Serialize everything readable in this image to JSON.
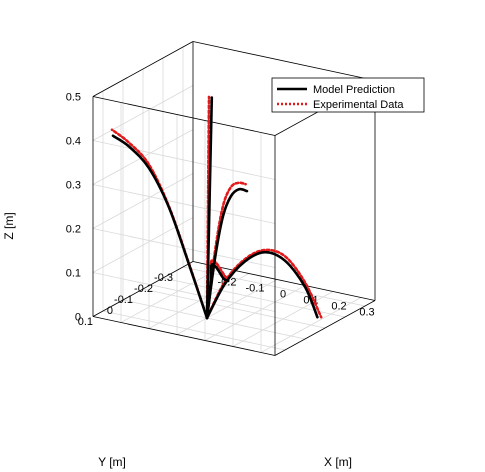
{
  "chart_data": {
    "type": "line",
    "subtype": "3d-line",
    "title": "",
    "xlabel": "X [m]",
    "ylabel": "Y [m]",
    "zlabel": "Z [m]",
    "xlim": [
      -0.3,
      0.35
    ],
    "ylim": [
      -0.35,
      0.15
    ],
    "zlim": [
      0,
      0.5
    ],
    "x_ticks": [
      "-0.2",
      "-0.1",
      "0",
      "0.1",
      "0.2",
      "0.3"
    ],
    "y_ticks": [
      "-0.3",
      "-0.2",
      "-0.1",
      "0",
      "0.1"
    ],
    "z_ticks": [
      "0",
      "0.1",
      "0.2",
      "0.3",
      "0.4",
      "0.5"
    ],
    "grid": true,
    "box": true,
    "legend": {
      "position": "top-right",
      "entries": [
        {
          "label": "Model Prediction",
          "color": "#000000",
          "style": "solid"
        },
        {
          "label": "Experimental Data",
          "color": "#e31a1c",
          "style": "dotted"
        }
      ]
    },
    "series": [
      {
        "legend_index": 0,
        "branch": "left",
        "color": "#000000",
        "style": "solid",
        "points": [
          [
            0,
            0,
            0
          ],
          [
            -0.05,
            0.02,
            0.12
          ],
          [
            -0.1,
            0.05,
            0.25
          ],
          [
            -0.15,
            0.08,
            0.34
          ],
          [
            -0.2,
            0.11,
            0.39
          ],
          [
            -0.25,
            0.12,
            0.41
          ]
        ]
      },
      {
        "legend_index": 1,
        "branch": "left",
        "color": "#e31a1c",
        "style": "dotted",
        "points": [
          [
            0,
            0,
            0
          ],
          [
            -0.05,
            0.022,
            0.125
          ],
          [
            -0.1,
            0.052,
            0.255
          ],
          [
            -0.15,
            0.082,
            0.35
          ],
          [
            -0.2,
            0.112,
            0.4
          ],
          [
            -0.25,
            0.125,
            0.425
          ]
        ]
      },
      {
        "legend_index": 0,
        "branch": "center",
        "color": "#000000",
        "style": "solid",
        "points": [
          [
            0,
            0,
            0
          ],
          [
            0.005,
            -0.005,
            0.25
          ],
          [
            0.01,
            -0.01,
            0.5
          ]
        ]
      },
      {
        "legend_index": 1,
        "branch": "center",
        "color": "#e31a1c",
        "style": "dotted",
        "points": [
          [
            0,
            0,
            0
          ],
          [
            0.0,
            -0.005,
            0.25
          ],
          [
            0.0,
            -0.01,
            0.5
          ]
        ]
      },
      {
        "legend_index": 0,
        "branch": "right-upper",
        "color": "#000000",
        "style": "solid",
        "points": [
          [
            0,
            0,
            0
          ],
          [
            0.05,
            0.03,
            0.15
          ],
          [
            0.1,
            0.06,
            0.26
          ],
          [
            0.15,
            0.09,
            0.32
          ],
          [
            0.2,
            0.12,
            0.35
          ],
          [
            0.25,
            0.15,
            0.36
          ]
        ]
      },
      {
        "legend_index": 1,
        "branch": "right-upper",
        "color": "#e31a1c",
        "style": "dotted",
        "points": [
          [
            0,
            0,
            0
          ],
          [
            0.05,
            0.032,
            0.16
          ],
          [
            0.1,
            0.062,
            0.28
          ],
          [
            0.15,
            0.092,
            0.34
          ],
          [
            0.2,
            0.122,
            0.365
          ],
          [
            0.245,
            0.15,
            0.375
          ]
        ]
      },
      {
        "legend_index": 0,
        "branch": "right-lower",
        "color": "#000000",
        "style": "solid",
        "points": [
          [
            0,
            0,
            0
          ],
          [
            0.05,
            -0.02,
            0.08
          ],
          [
            0.1,
            -0.05,
            0.13
          ],
          [
            0.15,
            -0.08,
            0.15
          ],
          [
            0.2,
            -0.11,
            0.13
          ],
          [
            0.25,
            -0.14,
            0.07
          ],
          [
            0.28,
            -0.16,
            0.0
          ]
        ]
      },
      {
        "legend_index": 1,
        "branch": "right-lower",
        "color": "#e31a1c",
        "style": "dotted",
        "points": [
          [
            0,
            0,
            0
          ],
          [
            0.05,
            -0.02,
            0.085
          ],
          [
            0.1,
            -0.05,
            0.135
          ],
          [
            0.15,
            -0.08,
            0.155
          ],
          [
            0.2,
            -0.11,
            0.14
          ],
          [
            0.25,
            -0.14,
            0.08
          ],
          [
            0.29,
            -0.165,
            0.0
          ]
        ]
      },
      {
        "legend_index": 0,
        "branch": "lower-left",
        "color": "#000000",
        "style": "solid",
        "points": [
          [
            0,
            0,
            0
          ],
          [
            -0.03,
            -0.06,
            0.06
          ],
          [
            -0.07,
            -0.12,
            0.08
          ],
          [
            -0.11,
            -0.2,
            0.05
          ],
          [
            -0.14,
            -0.28,
            0.0
          ],
          [
            -0.16,
            -0.33,
            -0.02
          ]
        ]
      },
      {
        "legend_index": 1,
        "branch": "lower-left",
        "color": "#e31a1c",
        "style": "dotted",
        "points": [
          [
            0,
            0,
            0
          ],
          [
            -0.03,
            -0.06,
            0.065
          ],
          [
            -0.07,
            -0.12,
            0.09
          ],
          [
            -0.11,
            -0.2,
            0.06
          ],
          [
            -0.14,
            -0.28,
            0.01
          ],
          [
            -0.17,
            -0.34,
            -0.02
          ]
        ]
      }
    ]
  }
}
